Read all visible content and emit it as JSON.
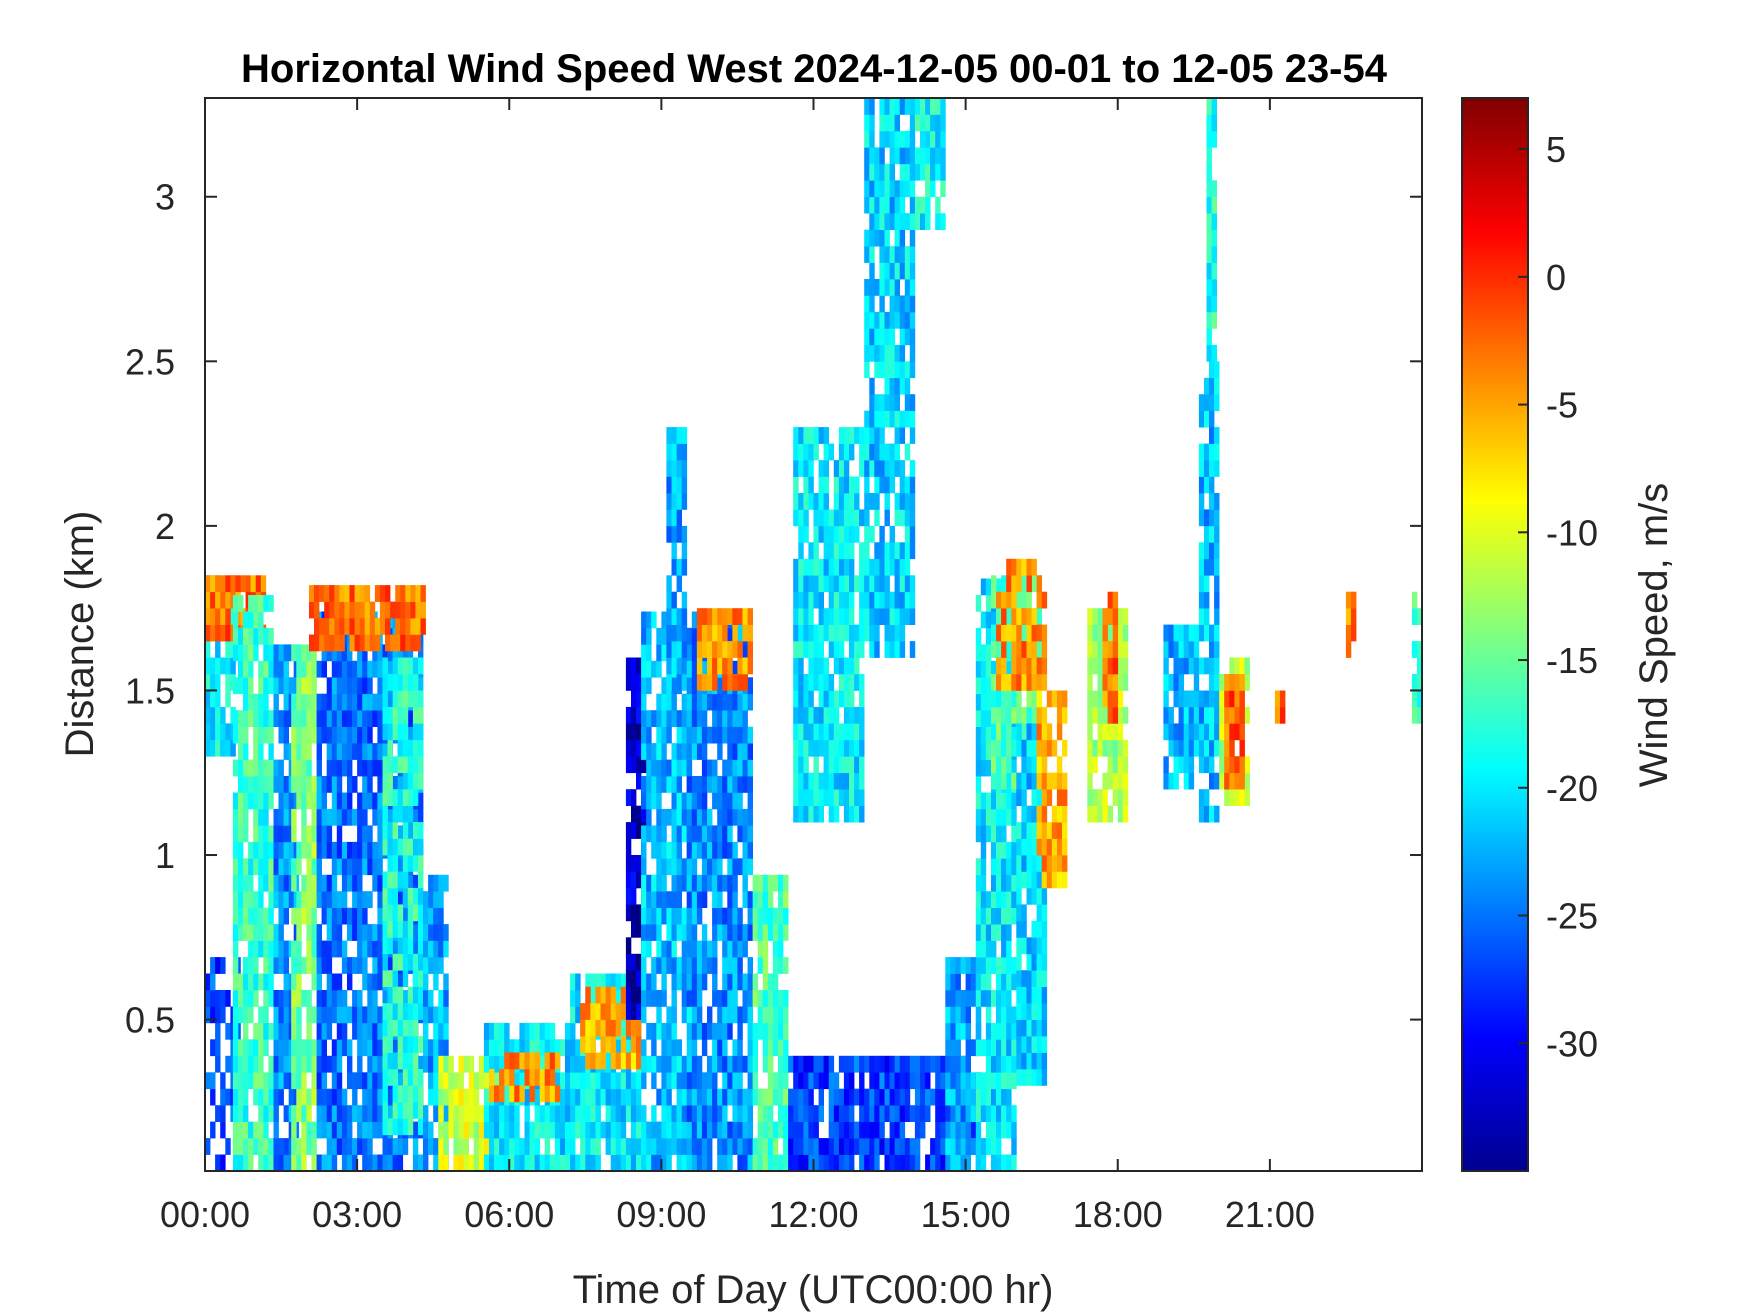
{
  "chart_data": {
    "type": "heatmap",
    "title": "Horizontal Wind Speed West 2024-12-05 00-01 to 12-05 23-54",
    "xlabel": "Time of Day (UTC00:00 hr)",
    "ylabel": "Distance (km)",
    "colorbar_label": "Wind Speed, m/s",
    "xlim": [
      0,
      24
    ],
    "ylim": [
      0.04,
      3.3
    ],
    "clim": [
      -35,
      7
    ],
    "colormap": "jet",
    "x_ticks": [
      {
        "value": 0,
        "label": "00:00"
      },
      {
        "value": 3,
        "label": "03:00"
      },
      {
        "value": 6,
        "label": "06:00"
      },
      {
        "value": 9,
        "label": "09:00"
      },
      {
        "value": 12,
        "label": "12:00"
      },
      {
        "value": 15,
        "label": "15:00"
      },
      {
        "value": 18,
        "label": "18:00"
      },
      {
        "value": 21,
        "label": "21:00"
      }
    ],
    "y_ticks": [
      {
        "value": 0.5,
        "label": "0.5"
      },
      {
        "value": 1,
        "label": "1"
      },
      {
        "value": 1.5,
        "label": "1.5"
      },
      {
        "value": 2,
        "label": "2"
      },
      {
        "value": 2.5,
        "label": "2.5"
      },
      {
        "value": 3,
        "label": "3"
      }
    ],
    "colorbar_ticks": [
      {
        "value": 5,
        "label": "5"
      },
      {
        "value": 0,
        "label": "0"
      },
      {
        "value": -5,
        "label": "-5"
      },
      {
        "value": -10,
        "label": "-10"
      },
      {
        "value": -15,
        "label": "-15"
      },
      {
        "value": -20,
        "label": "-20"
      },
      {
        "value": -25,
        "label": "-25"
      },
      {
        "value": -30,
        "label": "-30"
      }
    ],
    "regions": [
      {
        "x": [
          0.0,
          0.7
        ],
        "y": [
          0.04,
          0.65
        ],
        "v": -27,
        "density": 0.55
      },
      {
        "x": [
          0.0,
          0.6
        ],
        "y": [
          1.3,
          1.85
        ],
        "v": -20
      },
      {
        "x": [
          0.0,
          1.2
        ],
        "y": [
          1.65,
          1.82
        ],
        "v": -3
      },
      {
        "x": [
          0.55,
          1.35
        ],
        "y": [
          0.04,
          1.75
        ],
        "v": -17
      },
      {
        "x": [
          1.35,
          1.8
        ],
        "y": [
          0.04,
          1.6
        ],
        "v": -24
      },
      {
        "x": [
          1.7,
          2.2
        ],
        "y": [
          0.04,
          1.6
        ],
        "v": -14
      },
      {
        "x": [
          2.2,
          4.3
        ],
        "y": [
          0.04,
          1.7
        ],
        "v": -25
      },
      {
        "x": [
          2.05,
          4.3
        ],
        "y": [
          1.62,
          1.82
        ],
        "v": -3
      },
      {
        "x": [
          3.5,
          4.3
        ],
        "y": [
          0.15,
          1.6
        ],
        "v": -18
      },
      {
        "x": [
          4.3,
          4.8
        ],
        "y": [
          0.04,
          0.9
        ],
        "v": -23
      },
      {
        "x": [
          4.6,
          6.1
        ],
        "y": [
          0.04,
          0.38
        ],
        "v": -11
      },
      {
        "x": [
          5.5,
          7.3
        ],
        "y": [
          0.04,
          0.45
        ],
        "v": -20
      },
      {
        "x": [
          5.6,
          7.0
        ],
        "y": [
          0.25,
          0.4
        ],
        "v": -4
      },
      {
        "x": [
          7.2,
          8.6
        ],
        "y": [
          0.04,
          0.6
        ],
        "v": -20
      },
      {
        "x": [
          7.4,
          8.6
        ],
        "y": [
          0.35,
          0.6
        ],
        "v": -5
      },
      {
        "x": [
          8.3,
          8.7
        ],
        "y": [
          0.5,
          1.6
        ],
        "v": -32
      },
      {
        "x": [
          8.6,
          9.6
        ],
        "y": [
          0.04,
          1.7
        ],
        "v": -22
      },
      {
        "x": [
          9.1,
          9.5
        ],
        "y": [
          1.5,
          2.3
        ],
        "v": -23
      },
      {
        "x": [
          9.5,
          10.8
        ],
        "y": [
          0.04,
          1.7
        ],
        "v": -24
      },
      {
        "x": [
          9.7,
          10.8
        ],
        "y": [
          1.5,
          1.72
        ],
        "v": -4
      },
      {
        "x": [
          10.8,
          11.5
        ],
        "y": [
          0.04,
          0.9
        ],
        "v": -16
      },
      {
        "x": [
          11.5,
          15.2
        ],
        "y": [
          0.04,
          0.38
        ],
        "v": -27
      },
      {
        "x": [
          11.6,
          13.0
        ],
        "y": [
          1.1,
          2.3
        ],
        "v": -20
      },
      {
        "x": [
          13.0,
          14.0
        ],
        "y": [
          1.6,
          3.3
        ],
        "v": -21
      },
      {
        "x": [
          14.0,
          14.6
        ],
        "y": [
          2.9,
          3.3
        ],
        "v": -19
      },
      {
        "x": [
          14.6,
          15.3
        ],
        "y": [
          0.04,
          0.65
        ],
        "v": -23
      },
      {
        "x": [
          15.2,
          16.0
        ],
        "y": [
          0.04,
          1.8
        ],
        "v": -20
      },
      {
        "x": [
          15.5,
          16.5
        ],
        "y": [
          1.2,
          1.85
        ],
        "v": -16
      },
      {
        "x": [
          15.6,
          16.6
        ],
        "y": [
          1.5,
          1.9
        ],
        "v": -4
      },
      {
        "x": [
          16.0,
          16.6
        ],
        "y": [
          0.3,
          1.4
        ],
        "v": -21
      },
      {
        "x": [
          16.4,
          17.0
        ],
        "y": [
          0.9,
          1.5
        ],
        "v": -5
      },
      {
        "x": [
          17.4,
          18.2
        ],
        "y": [
          1.1,
          1.75
        ],
        "v": -12
      },
      {
        "x": [
          17.7,
          18.0
        ],
        "y": [
          1.4,
          1.8
        ],
        "v": -3
      },
      {
        "x": [
          18.9,
          19.6
        ],
        "y": [
          1.2,
          1.7
        ],
        "v": -22
      },
      {
        "x": [
          19.6,
          20.0
        ],
        "y": [
          1.1,
          2.5
        ],
        "v": -22
      },
      {
        "x": [
          20.0,
          20.6
        ],
        "y": [
          1.15,
          1.58
        ],
        "v": -12
      },
      {
        "x": [
          20.1,
          20.5
        ],
        "y": [
          1.2,
          1.55
        ],
        "v": -2
      },
      {
        "x": [
          19.75,
          19.95
        ],
        "y": [
          2.5,
          3.3
        ],
        "v": -18
      },
      {
        "x": [
          21.1,
          21.3
        ],
        "y": [
          1.4,
          1.5
        ],
        "v": -2
      },
      {
        "x": [
          22.5,
          22.7
        ],
        "y": [
          1.6,
          1.8
        ],
        "v": -3
      },
      {
        "x": [
          23.8,
          24.0
        ],
        "y": [
          1.4,
          1.8
        ],
        "v": -17
      }
    ]
  }
}
